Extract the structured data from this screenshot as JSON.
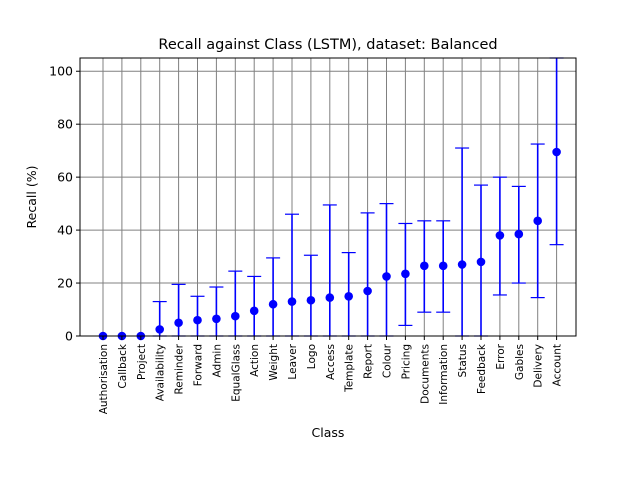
{
  "chart_data": {
    "type": "scatter",
    "title": "Recall against Class (LSTM), dataset: Balanced",
    "xlabel": "Class",
    "ylabel": "Recall (%)",
    "ylim": [
      0,
      105
    ],
    "yticks": [
      0,
      20,
      40,
      60,
      80,
      100
    ],
    "grid": true,
    "color": "#0000ff",
    "categories": [
      "Authorisation",
      "Callback",
      "Project",
      "Availability",
      "Reminder",
      "Forward",
      "Admin",
      "EqualGlass",
      "Action",
      "Weight",
      "Leaver",
      "Logo",
      "Access",
      "Template",
      "Report",
      "Colour",
      "Pricing",
      "Documents",
      "Information",
      "Status",
      "Feedback",
      "Error",
      "Gables",
      "Delivery",
      "Account"
    ],
    "values": [
      0,
      0,
      0,
      2.5,
      5,
      6,
      6.5,
      7.5,
      9.5,
      12,
      13,
      13.5,
      14.5,
      15,
      17,
      22.5,
      23.5,
      26.5,
      26.5,
      27,
      28,
      38,
      38.5,
      43.5,
      69.5
    ],
    "err_low": [
      0,
      0,
      0,
      0,
      0,
      0,
      0,
      0,
      0,
      0,
      0,
      0,
      0,
      0,
      0,
      0,
      4,
      9,
      9,
      0,
      0,
      15.5,
      20,
      14.5,
      34.5
    ],
    "err_high": [
      0,
      0,
      0,
      13,
      19.5,
      15,
      18.5,
      24.5,
      22.5,
      29.5,
      46,
      30.5,
      49.5,
      31.5,
      46.5,
      50,
      42.5,
      43.5,
      43.5,
      71,
      57,
      60,
      56.5,
      72.5,
      105
    ]
  }
}
